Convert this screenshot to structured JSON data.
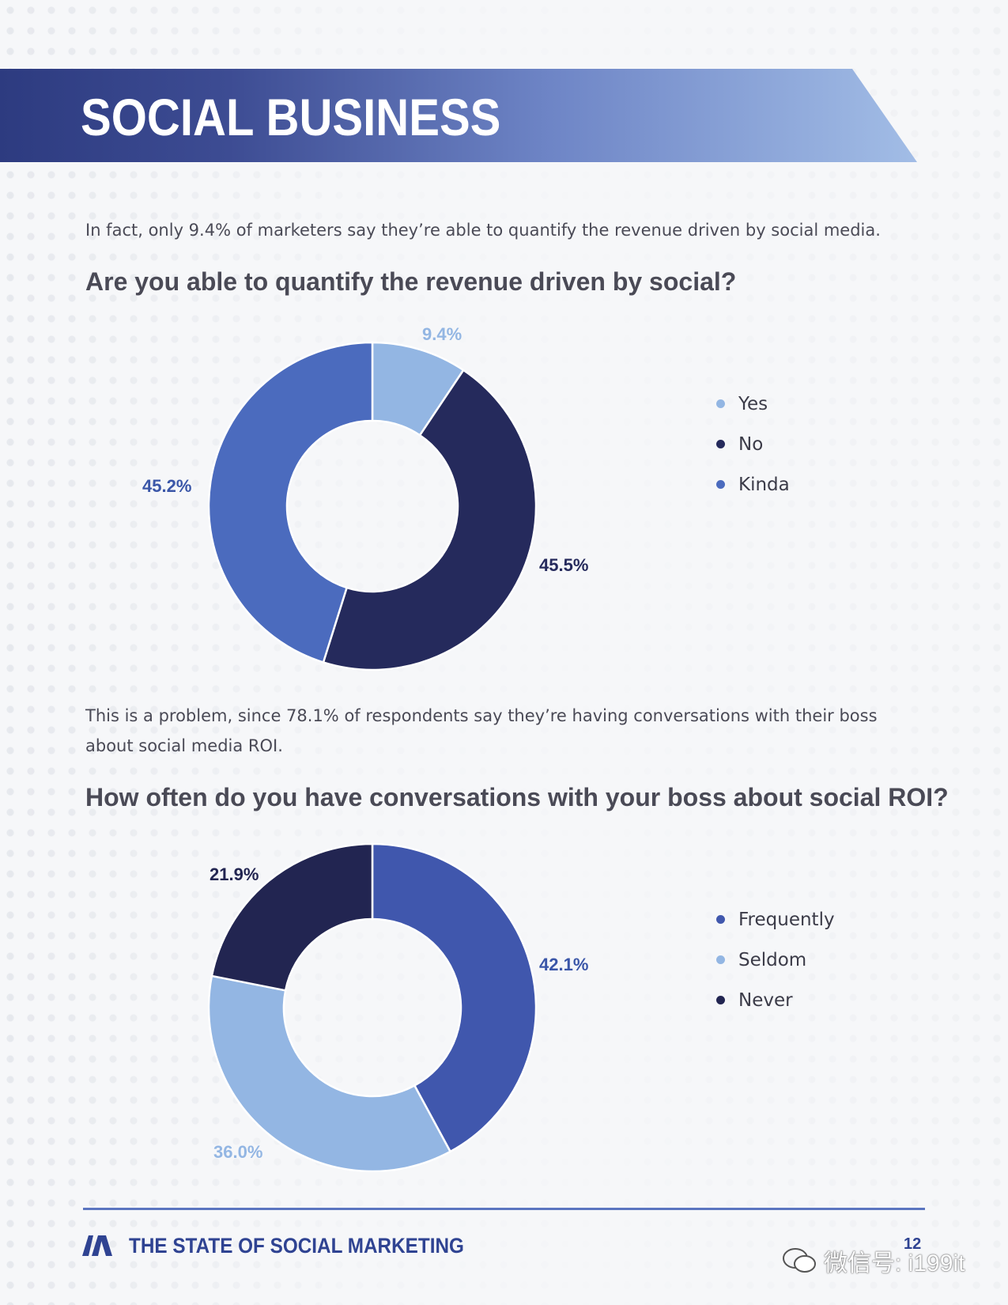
{
  "header": {
    "title": "SOCIAL BUSINESS"
  },
  "intro_text": "In fact, only 9.4% of marketers say they’re able to quantify the revenue driven by social media.",
  "question1": "Are you able to quantify the revenue driven by social?",
  "middle_text": "This is a problem, since 78.1% of respondents say they’re having conversations with their boss about social media ROI.",
  "question2": "How often do you have conversations with your boss about social ROI?",
  "chart_data": [
    {
      "type": "pie",
      "variant": "donut",
      "categories": [
        "Yes",
        "No",
        "Kinda"
      ],
      "values": [
        9.4,
        45.5,
        45.2
      ],
      "labels": [
        "9.4%",
        "45.5%",
        "45.2%"
      ],
      "colors": [
        "#93b6e3",
        "#252a5c",
        "#4b6bbe"
      ],
      "label_colors": [
        "#93b6e3",
        "#252a5c",
        "#3a56a8"
      ],
      "legend_position": "right"
    },
    {
      "type": "pie",
      "variant": "donut",
      "categories": [
        "Frequently",
        "Seldom",
        "Never"
      ],
      "values": [
        42.1,
        36.0,
        21.9
      ],
      "labels": [
        "42.1%",
        "36.0%",
        "21.9%"
      ],
      "colors": [
        "#4057ad",
        "#93b6e3",
        "#222551"
      ],
      "label_colors": [
        "#3a56a8",
        "#93b6e3",
        "#222551"
      ],
      "legend_position": "right"
    }
  ],
  "footer": {
    "title": "THE STATE OF SOCIAL MARKETING",
    "page_number": "12",
    "watermark": "微信号: i199it"
  },
  "icons": [
    "brand-logo-icon",
    "wechat-icon"
  ]
}
